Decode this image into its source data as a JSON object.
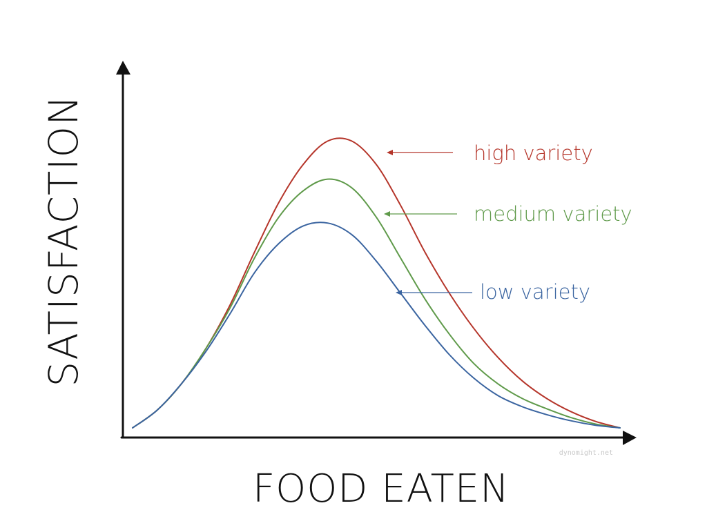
{
  "chart_data": {
    "type": "line",
    "xlabel": "FOOD EATEN",
    "ylabel": "SATISFACTION",
    "xlim": [
      0,
      1
    ],
    "ylim": [
      0,
      1
    ],
    "grid": false,
    "legend": "inline-right",
    "x": [
      0,
      0.05,
      0.1,
      0.15,
      0.2,
      0.25,
      0.3,
      0.35,
      0.4,
      0.45,
      0.5,
      0.55,
      0.6,
      0.65,
      0.7,
      0.75,
      0.8,
      0.85,
      0.9,
      0.95,
      1.0
    ],
    "series": [
      {
        "name": "high variety",
        "color": "#b5352a",
        "values": [
          0.0,
          0.06,
          0.15,
          0.27,
          0.42,
          0.6,
          0.77,
          0.9,
          0.98,
          0.98,
          0.9,
          0.76,
          0.6,
          0.46,
          0.34,
          0.24,
          0.16,
          0.1,
          0.055,
          0.022,
          0.0
        ]
      },
      {
        "name": "medium variety",
        "color": "#5f9a4a",
        "values": [
          0.0,
          0.06,
          0.15,
          0.27,
          0.41,
          0.58,
          0.72,
          0.81,
          0.85,
          0.82,
          0.72,
          0.58,
          0.44,
          0.32,
          0.22,
          0.15,
          0.1,
          0.065,
          0.035,
          0.013,
          0.0
        ]
      },
      {
        "name": "low variety",
        "color": "#3a64a0",
        "values": [
          0.0,
          0.06,
          0.15,
          0.26,
          0.39,
          0.53,
          0.63,
          0.69,
          0.7,
          0.66,
          0.57,
          0.46,
          0.35,
          0.25,
          0.17,
          0.11,
          0.072,
          0.045,
          0.024,
          0.009,
          0.0
        ]
      }
    ],
    "annotation": "dynomight.net"
  }
}
